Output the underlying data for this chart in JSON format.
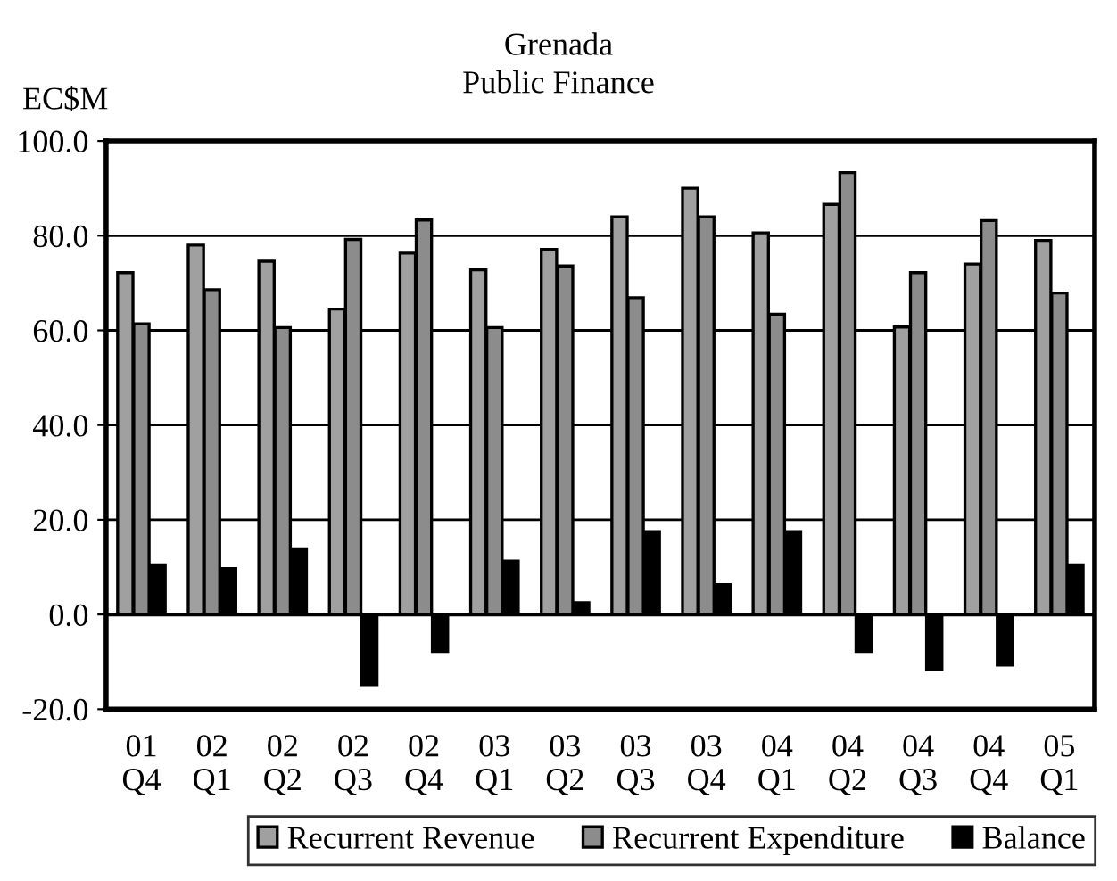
{
  "chart_data": {
    "type": "bar",
    "title": "Grenada\nPublic Finance",
    "ylabel": "EC$M",
    "categories": [
      "01\nQ4",
      "02\nQ1",
      "02\nQ2",
      "02\nQ3",
      "02\nQ4",
      "03\nQ1",
      "03\nQ2",
      "03\nQ3",
      "03\nQ4",
      "04\nQ1",
      "04\nQ2",
      "04\nQ3",
      "04\nQ4",
      "05\nQ1"
    ],
    "series": [
      {
        "name": "Recurrent Revenue",
        "color": "#a0a0a0",
        "values": [
          72.2,
          78.0,
          74.6,
          64.5,
          76.3,
          72.8,
          77.1,
          84.0,
          90.0,
          80.6,
          86.6,
          60.7,
          74.0,
          79.0
        ]
      },
      {
        "name": "Recurrent Expenditure",
        "color": "#8c8c8c",
        "values": [
          61.4,
          68.6,
          60.6,
          79.2,
          83.3,
          60.6,
          73.6,
          66.9,
          84.0,
          63.4,
          93.3,
          72.2,
          83.2,
          67.9
        ]
      },
      {
        "name": "Balance",
        "color": "#000000",
        "values": [
          10.5,
          9.7,
          13.9,
          -14.8,
          -7.8,
          11.3,
          2.5,
          17.5,
          6.3,
          17.5,
          -7.8,
          -11.6,
          -10.7,
          10.5
        ]
      }
    ],
    "ylim": [
      -20,
      100
    ],
    "yticks": [
      {
        "value": -20,
        "label": "-20.0"
      },
      {
        "value": 0,
        "label": "0.0"
      },
      {
        "value": 20,
        "label": "20.0"
      },
      {
        "value": 40,
        "label": "40.0"
      },
      {
        "value": 60,
        "label": "60.0"
      },
      {
        "value": 80,
        "label": "80.0"
      },
      {
        "value": 100,
        "label": "100.0"
      }
    ],
    "grid": "y",
    "legend": "bottom"
  }
}
